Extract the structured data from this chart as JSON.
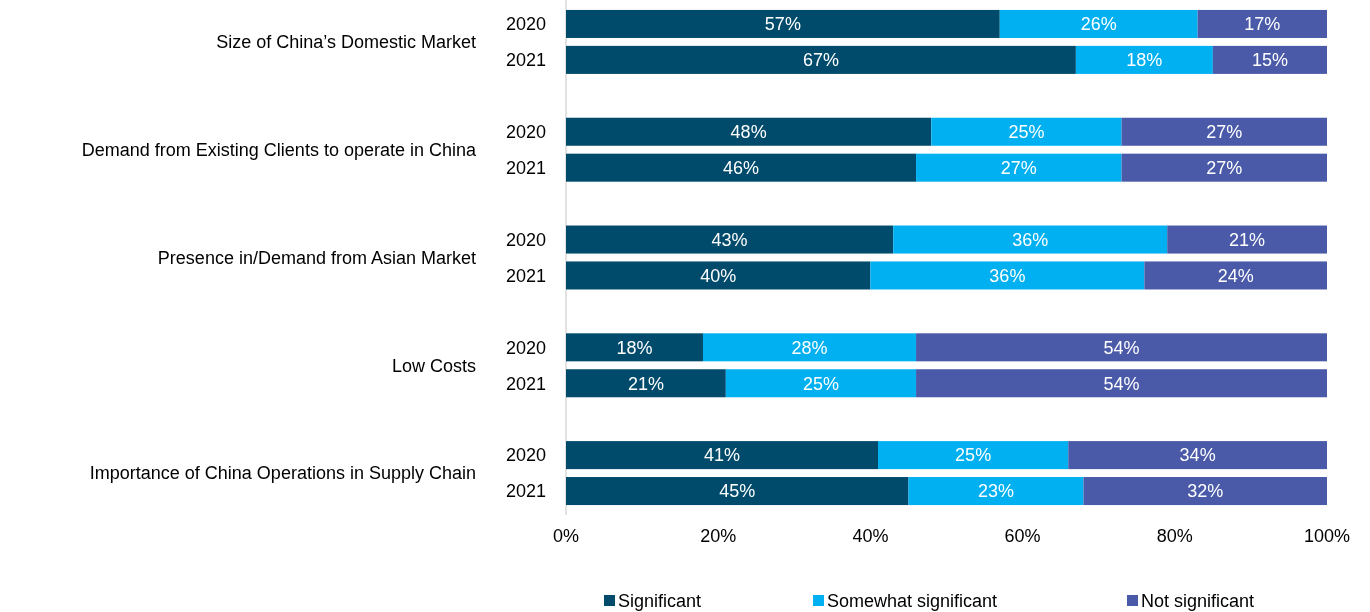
{
  "chart_data": {
    "type": "bar",
    "orientation": "horizontal",
    "stacked": true,
    "categories": [
      "2020",
      "2021",
      null,
      "2020",
      "2021",
      null,
      "2020",
      "2021",
      null,
      "2020",
      "2021",
      null,
      "2020",
      "2021"
    ],
    "series": [
      {
        "name": "Significant",
        "color": "#004b6b",
        "values": [
          57,
          67,
          null,
          48,
          46,
          null,
          43,
          40,
          null,
          18,
          21,
          null,
          41,
          45
        ],
        "value_labels": [
          "57%",
          "67%",
          null,
          "48%",
          "46%",
          null,
          "43%",
          "40%",
          null,
          "18%",
          "21%",
          null,
          "41%",
          "45%"
        ]
      },
      {
        "name": "Somewhat significant",
        "color": "#00b0f0",
        "values": [
          26,
          18,
          null,
          25,
          27,
          null,
          36,
          36,
          null,
          28,
          25,
          null,
          25,
          23
        ],
        "value_labels": [
          "26%",
          "18%",
          null,
          "25%",
          "27%",
          null,
          "36%",
          "36%",
          null,
          "28%",
          "25%",
          null,
          "25%",
          "23%"
        ]
      },
      {
        "name": "Not significant",
        "color": "#4a5aa8",
        "values": [
          17,
          15,
          null,
          27,
          27,
          null,
          21,
          24,
          null,
          54,
          54,
          null,
          34,
          32
        ],
        "value_labels": [
          "17%",
          "15%",
          null,
          "27%",
          "27%",
          null,
          "21%",
          "24%",
          null,
          "54%",
          "54%",
          null,
          "34%",
          "32%"
        ]
      }
    ],
    "annotations": [
      "Size of China’s Domestic Market",
      "Demand from Existing Clients to operate in China",
      "Presence in/Demand from Asian Market",
      "Low Costs",
      "Importance of China Operations in Supply Chain"
    ],
    "xlim": [
      0,
      100
    ],
    "xticks": [
      {
        "value": 0,
        "label": "0%"
      },
      {
        "value": 20,
        "label": "20%"
      },
      {
        "value": 40,
        "label": "40%"
      },
      {
        "value": 60,
        "label": "60%"
      },
      {
        "value": 80,
        "label": "80%"
      },
      {
        "value": 100,
        "label": "100%"
      }
    ],
    "legend": "bottom"
  }
}
